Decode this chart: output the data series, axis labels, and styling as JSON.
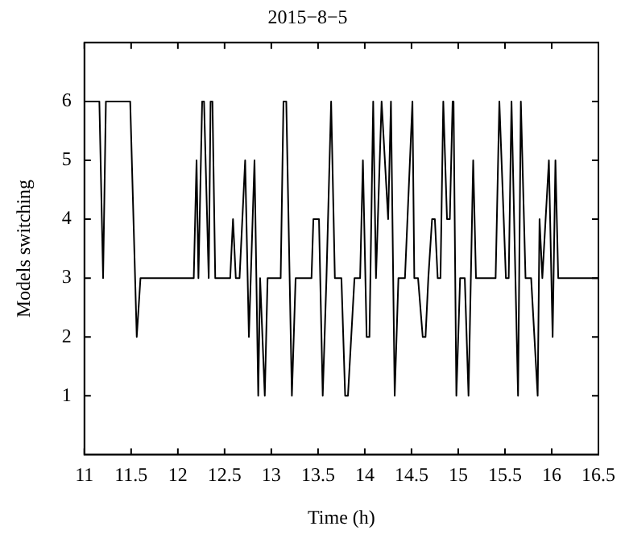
{
  "chart_data": {
    "type": "line",
    "title": "2015−8−5",
    "xlabel": "Time (h)",
    "ylabel": "Models switching",
    "x": [
      11,
      11.16,
      11.2,
      11.23,
      11.49,
      11.56,
      11.6,
      12.17,
      12.2,
      12.22,
      12.26,
      12.28,
      12.33,
      12.35,
      12.37,
      12.4,
      12.56,
      12.59,
      12.62,
      12.66,
      12.72,
      12.76,
      12.82,
      12.86,
      12.88,
      12.93,
      12.96,
      13.1,
      13.13,
      13.16,
      13.22,
      13.26,
      13.43,
      13.45,
      13.51,
      13.55,
      13.59,
      13.64,
      13.68,
      13.75,
      13.79,
      13.82,
      13.89,
      13.95,
      13.98,
      14.02,
      14.05,
      14.09,
      14.12,
      14.18,
      14.25,
      14.28,
      14.32,
      14.36,
      14.43,
      14.51,
      14.53,
      14.57,
      14.62,
      14.65,
      14.68,
      14.72,
      14.75,
      14.78,
      14.81,
      14.84,
      14.88,
      14.91,
      14.94,
      14.95,
      14.98,
      15.02,
      15.07,
      15.11,
      15.16,
      15.19,
      15.4,
      15.44,
      15.51,
      15.54,
      15.57,
      15.64,
      15.67,
      15.72,
      15.78,
      15.85,
      15.87,
      15.9,
      15.97,
      16.01,
      16.04,
      16.07,
      16.5
    ],
    "series": [
      {
        "color": "#000000",
        "values": [
          6,
          6,
          3,
          6,
          6,
          2,
          3,
          3,
          5,
          3,
          6,
          6,
          3,
          6,
          6,
          3,
          3,
          4,
          3,
          3,
          5,
          2,
          5,
          1,
          3,
          1,
          3,
          3,
          6,
          6,
          1,
          3,
          3,
          4,
          4,
          1,
          3,
          6,
          3,
          3,
          1,
          1,
          3,
          3,
          5,
          2,
          2,
          6,
          3,
          6,
          4,
          6,
          1,
          3,
          3,
          6,
          3,
          3,
          2,
          2,
          3,
          4,
          4,
          3,
          3,
          6,
          4,
          4,
          6,
          6,
          1,
          3,
          3,
          1,
          5,
          3,
          3,
          6,
          3,
          3,
          6,
          1,
          6,
          3,
          3,
          1,
          4,
          3,
          5,
          2,
          5,
          3,
          3
        ]
      }
    ],
    "xlim": [
      11,
      16.5
    ],
    "xticks": [
      11,
      11.5,
      12,
      12.5,
      13,
      13.5,
      14,
      14.5,
      15,
      15.5,
      16,
      16.5
    ],
    "ylim": [
      0,
      7
    ],
    "yticks": [
      1,
      2,
      3,
      4,
      5,
      6
    ],
    "grid": false,
    "legend": false,
    "marker": "none",
    "line_style": "solid"
  }
}
